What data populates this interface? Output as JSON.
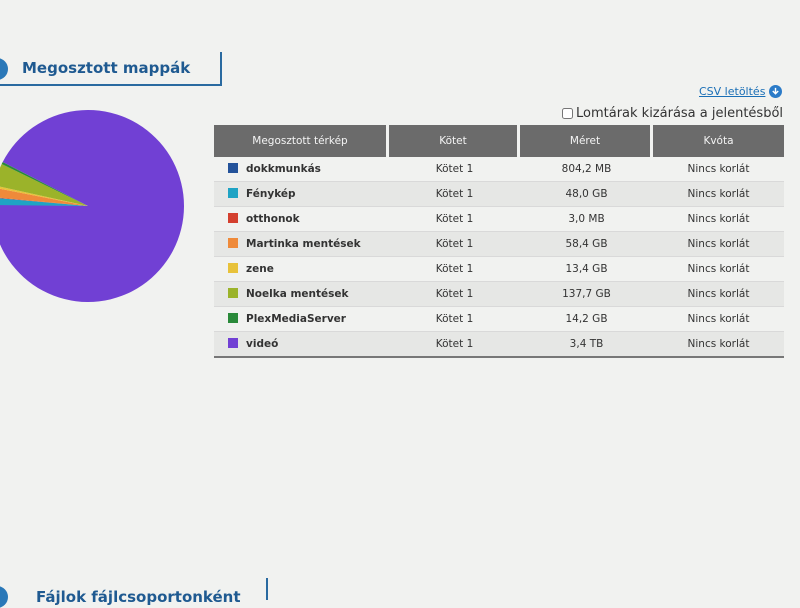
{
  "section": {
    "title": "Megosztott mappák"
  },
  "csv": {
    "label": "CSV letöltés",
    "icon": "download-icon"
  },
  "exclude": {
    "label": "Lomtárak kizárása a jelentésből",
    "checked": false
  },
  "table": {
    "headers": [
      "Megosztott térkép",
      "Kötet",
      "Méret",
      "Kvóta"
    ],
    "rows": [
      {
        "name": "dokkmunkás",
        "volume": "Kötet 1",
        "size": "804,2 MB",
        "quota": "Nincs korlát",
        "color": "#24539a"
      },
      {
        "name": "Fénykép",
        "volume": "Kötet 1",
        "size": "48,0 GB",
        "quota": "Nincs korlát",
        "color": "#1fa3c4"
      },
      {
        "name": "otthonok",
        "volume": "Kötet 1",
        "size": "3,0 MB",
        "quota": "Nincs korlát",
        "color": "#d4402f"
      },
      {
        "name": "Martinka mentések",
        "volume": "Kötet 1",
        "size": "58,4 GB",
        "quota": "Nincs korlát",
        "color": "#ef8a3a"
      },
      {
        "name": "zene",
        "volume": "Kötet 1",
        "size": "13,4 GB",
        "quota": "Nincs korlát",
        "color": "#e8c23a"
      },
      {
        "name": "Noelka mentések",
        "volume": "Kötet 1",
        "size": "137,7 GB",
        "quota": "Nincs korlát",
        "color": "#9bb32a"
      },
      {
        "name": "PlexMediaServer",
        "volume": "Kötet 1",
        "size": "14,2 GB",
        "quota": "Nincs korlát",
        "color": "#2a8a3a"
      },
      {
        "name": "videó",
        "volume": "Kötet 1",
        "size": "3,4 TB",
        "quota": "Nincs korlát",
        "color": "#7140d4"
      }
    ]
  },
  "pie": {
    "slices_gb": [
      0.8,
      48.0,
      0.003,
      58.4,
      13.4,
      137.7,
      14.2,
      3400
    ]
  },
  "bottom_section": {
    "title": "Fájlok fájlcsoportonként"
  }
}
